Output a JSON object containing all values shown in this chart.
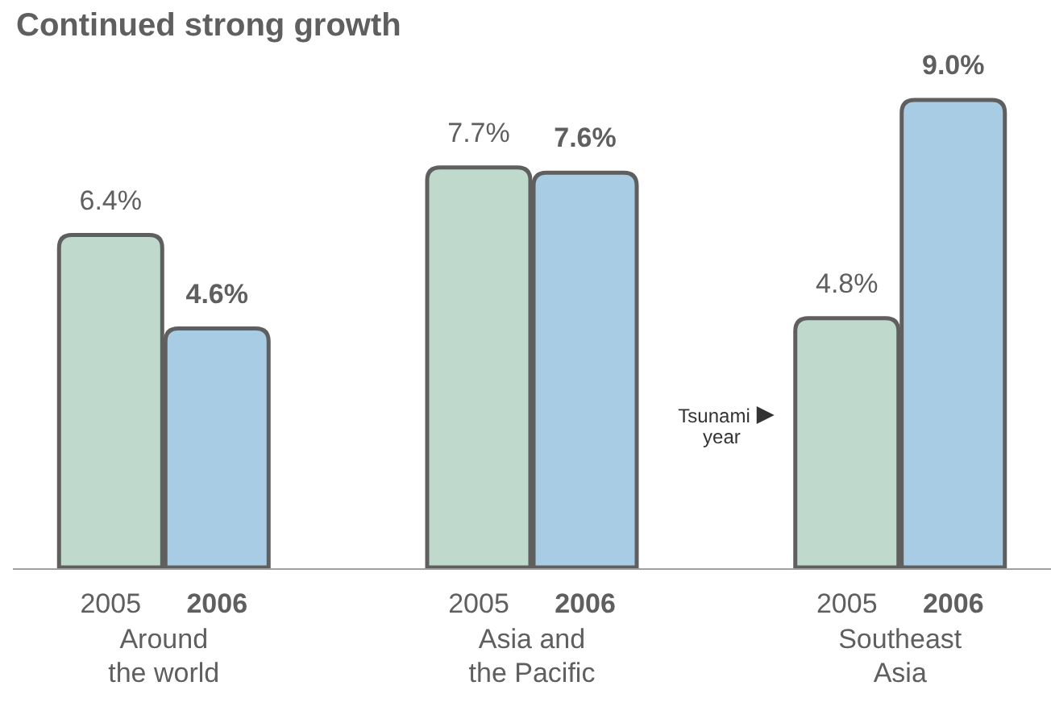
{
  "chart_data": {
    "type": "bar",
    "title": "Continued strong growth",
    "categories": [
      "Around the world",
      "Asia and the Pacific",
      "Southeast Asia"
    ],
    "series": [
      {
        "name": "2005",
        "color": "#bfd9cc",
        "values": [
          6.4,
          7.7,
          4.8
        ],
        "value_labels": [
          "6.4%",
          "7.7%",
          "4.8%"
        ]
      },
      {
        "name": "2006",
        "color": "#a8cce4",
        "values": [
          4.6,
          7.6,
          9.0
        ],
        "value_labels": [
          "4.6%",
          "7.6%",
          "9.0%"
        ]
      }
    ],
    "annotations": [
      "Tsunami year"
    ]
  }
}
